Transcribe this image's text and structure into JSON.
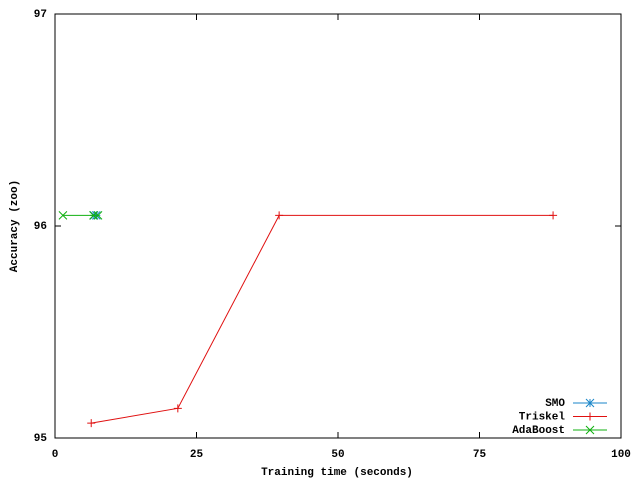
{
  "chart_data": {
    "type": "line",
    "xlabel": "Training time (seconds)",
    "ylabel": "Accuracy (zoo)",
    "xlim": [
      0,
      100
    ],
    "ylim": [
      95,
      97
    ],
    "xticks": [
      0,
      25,
      50,
      75,
      100
    ],
    "yticks": [
      95,
      96,
      97
    ],
    "grid": false,
    "legend": "bottom-right",
    "series": [
      {
        "name": "SMO",
        "color": "#1a86c8",
        "marker": "star",
        "x": [
          6.9,
          7.3
        ],
        "values": [
          96.05,
          96.05
        ]
      },
      {
        "name": "Triskel",
        "color": "#e01010",
        "marker": "plus",
        "x": [
          6.4,
          21.7,
          39.6,
          88.0
        ],
        "values": [
          95.07,
          95.14,
          96.05,
          96.05
        ]
      },
      {
        "name": "AdaBoost",
        "color": "#10b010",
        "marker": "cross",
        "x": [
          1.4,
          6.8,
          7.6
        ],
        "values": [
          96.05,
          96.05,
          96.05
        ]
      }
    ]
  }
}
